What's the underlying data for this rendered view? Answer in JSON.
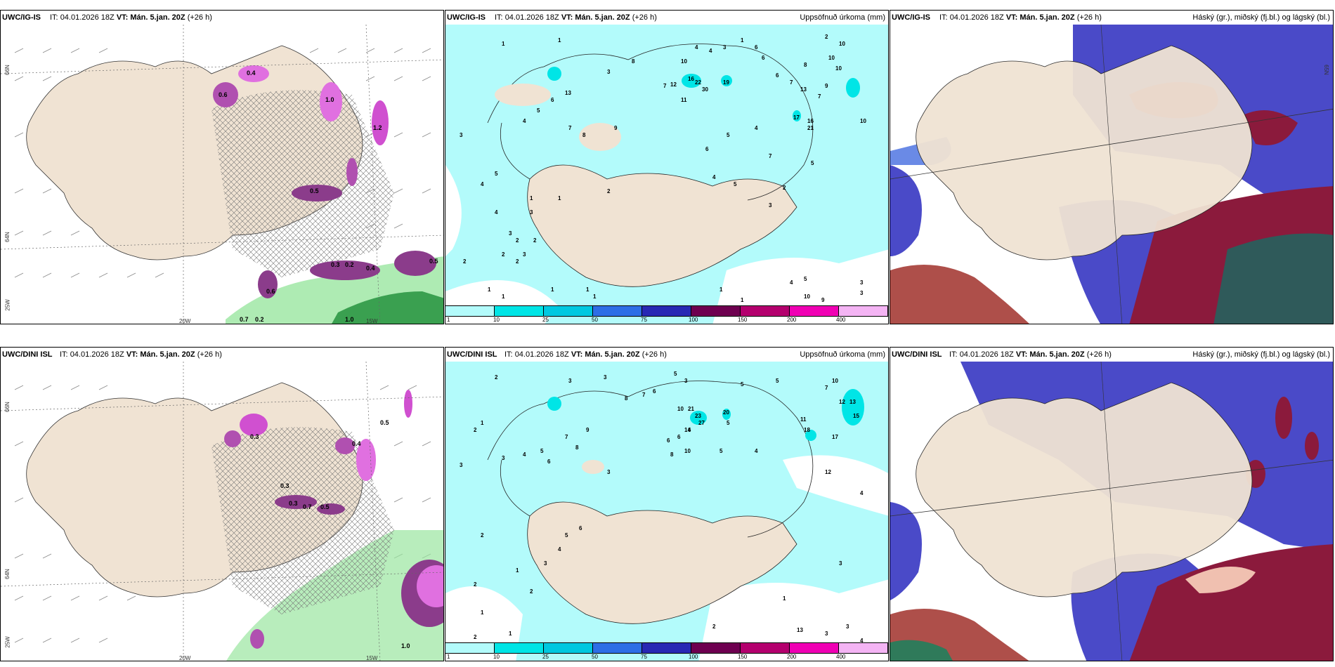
{
  "colors": {
    "land": "#f0e3d3",
    "ocean_precip": "#b3fbfb",
    "cyan": "#00e5e6",
    "blue": "#4646c8",
    "dark_red": "#8b1a3c",
    "purple": "#8b3c8b",
    "magenta": "#e040e0",
    "green": "#9ae6a0"
  },
  "panels": [
    {
      "model": "UWC/IG-IS",
      "it_label": "IT:",
      "it_value": "04.01.2026 18Z",
      "vt_label": "VT:",
      "vt_value": "Mán. 5.jan. 20Z",
      "lead": "(+26 h)",
      "right_title": ""
    },
    {
      "model": "UWC/IG-IS",
      "it_label": "IT:",
      "it_value": "04.01.2026 18Z",
      "vt_label": "VT:",
      "vt_value": "Mán. 5.jan. 20Z",
      "lead": "(+26 h)",
      "right_title": "Uppsöfnuð úrkoma (mm)"
    },
    {
      "model": "UWC/IG-IS",
      "it_label": "IT:",
      "it_value": "04.01.2026 18Z",
      "vt_label": "VT:",
      "vt_value": "Mán. 5.jan. 20Z",
      "lead": "(+26 h)",
      "right_title": "Háský (gr.), miðský (fj.bl.) og lágský (bl.)"
    },
    {
      "model": "UWC/DINI ISL",
      "it_label": "IT:",
      "it_value": "04.01.2026 18Z",
      "vt_label": "VT:",
      "vt_value": "Mán. 5.jan. 20Z",
      "lead": "(+26 h)",
      "right_title": ""
    },
    {
      "model": "UWC/DINI ISL",
      "it_label": "IT:",
      "it_value": "04.01.2026 18Z",
      "vt_label": "VT:",
      "vt_value": "Mán. 5.jan. 20Z",
      "lead": "(+26 h)",
      "right_title": "Uppsöfnuð úrkoma (mm)"
    },
    {
      "model": "UWC/DINI ISL",
      "it_label": "IT:",
      "it_value": "04.01.2026 18Z",
      "vt_label": "VT:",
      "vt_value": "Mán. 5.jan. 20Z",
      "lead": "(+26 h)",
      "right_title": "Háský (gr.), miðský (fj.bl.) og lágský (bl.)"
    }
  ],
  "legend": {
    "ticks": [
      "1",
      "10",
      "25",
      "50",
      "75",
      "100",
      "150",
      "200",
      "400"
    ],
    "colors": [
      "#b3fbfb",
      "#00e5e6",
      "#00c8e0",
      "#2d6ee6",
      "#2828b4",
      "#6e0050",
      "#b4006e",
      "#f000b4",
      "#f4b4f4"
    ]
  },
  "axis_labels": {
    "lat_top": "66N",
    "lat_mid": "64N",
    "lon_left": "25W",
    "lon_mid": "20W",
    "lon_right": "15W",
    "lat_right_top": "65N",
    "lat_right_mid": "64N"
  },
  "precip_values_top": [
    "1",
    "1",
    "1",
    "2",
    "3",
    "8",
    "4",
    "4",
    "3",
    "6",
    "6",
    "6",
    "10",
    "7",
    "7",
    "8",
    "7",
    "10",
    "10",
    "13",
    "10",
    "16",
    "22",
    "30",
    "19",
    "12",
    "9",
    "13",
    "17",
    "16",
    "21",
    "10",
    "11",
    "9",
    "5",
    "4",
    "7",
    "5",
    "6",
    "3",
    "2",
    "4",
    "1",
    "3",
    "4",
    "5",
    "6",
    "7",
    "8",
    "3",
    "2",
    "1",
    "2",
    "2",
    "3",
    "1",
    "1",
    "2",
    "1",
    "1",
    "4",
    "5",
    "2",
    "3",
    "2",
    "1",
    "4",
    "5",
    "1",
    "10",
    "9",
    "3",
    "3",
    "1",
    "4",
    "5"
  ],
  "precip_values_bottom": [
    "2",
    "3",
    "3",
    "5",
    "3",
    "5",
    "5",
    "7",
    "10",
    "7",
    "6",
    "8",
    "6",
    "6",
    "6",
    "5",
    "10",
    "11",
    "12",
    "13",
    "15",
    "17",
    "18",
    "20",
    "21",
    "23",
    "27",
    "14",
    "10",
    "8",
    "5",
    "4",
    "3",
    "2",
    "1",
    "3",
    "4",
    "5",
    "6",
    "7",
    "8",
    "9",
    "3",
    "2",
    "2",
    "1",
    "1",
    "2",
    "3",
    "4",
    "5",
    "6",
    "12",
    "4",
    "3",
    "1",
    "3",
    "13",
    "3",
    "4",
    "2",
    "2",
    "1"
  ],
  "cloud_labels_top": [
    "0.7",
    "0.2",
    "1.0",
    "0.6",
    "0.5",
    "0.3",
    "0.2",
    "0.4",
    "0.6",
    "0.5",
    "1.0",
    "0.4",
    "1.2"
  ],
  "cloud_labels_bottom": [
    "0.5",
    "0.3",
    "0.3",
    "0.5",
    "0.7",
    "0.3",
    "0.4",
    "1.0"
  ]
}
